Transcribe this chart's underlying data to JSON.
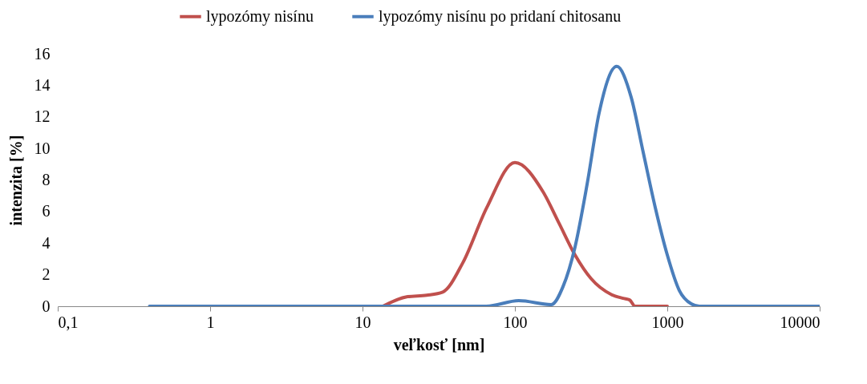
{
  "chart_data": {
    "type": "line",
    "xlabel": "veľkosť [nm]",
    "ylabel": "intenzita [%]",
    "log": "x",
    "xlim": [
      0.1,
      10000
    ],
    "xticks": [
      {
        "value": 0.1,
        "label": "0,1"
      },
      1,
      10,
      100,
      1000,
      10000
    ],
    "ylim": [
      0,
      16
    ],
    "yticks": [
      0,
      2,
      4,
      6,
      8,
      10,
      12,
      14,
      16
    ],
    "grid": false,
    "legend": "top",
    "line_style": "solid",
    "marker": "none",
    "series": [
      {
        "name": "lypozómy nisínu",
        "color": "#c0504d",
        "x": [
          13.6,
          19.5,
          26.4,
          33.6,
          45.5,
          65.4,
          100,
          153,
          195,
          248,
          316,
          428,
          514,
          566,
          615,
          1000
        ],
        "values": [
          0,
          0.6,
          0.7,
          0.9,
          2.75,
          6.25,
          9.1,
          7.25,
          5.25,
          3.25,
          1.75,
          0.75,
          0.5,
          0.4,
          0,
          0
        ]
      },
      {
        "name": "lypozómy nisínu po pridaní chitosanu",
        "color": "#4a7ebb",
        "x": [
          0.4,
          1,
          10,
          65,
          106,
          173,
          207,
          248,
          298,
          357,
          466,
          579,
          695,
          834,
          1000,
          1199,
          1438,
          1624,
          10000
        ],
        "values": [
          0,
          0,
          0,
          0,
          0.35,
          0.1,
          1.25,
          3.75,
          7.75,
          12.25,
          15.2,
          13.25,
          9.75,
          6.25,
          3.25,
          1,
          0.15,
          0,
          0
        ]
      }
    ]
  }
}
